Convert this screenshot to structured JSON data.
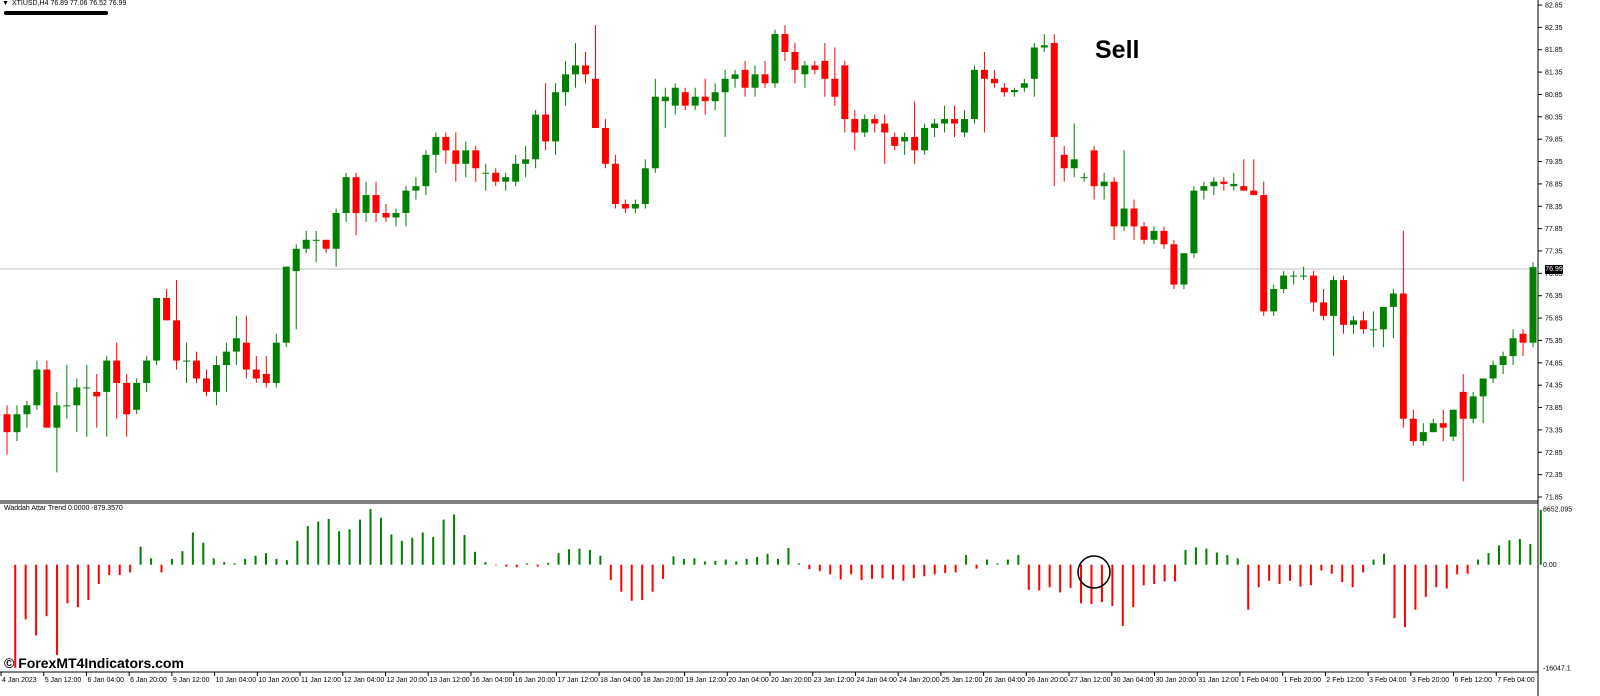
{
  "header": {
    "symbol_line": "XTIUSD,H4  76.89 77.06 76.52 76.99"
  },
  "signal": {
    "label": "Sell"
  },
  "current_price": "76.99",
  "indicator": {
    "title": "Waddah Attar Trend 0.0000 -879.3570",
    "axis_labels": [
      "8652.095",
      "0.00",
      "-16047.1"
    ]
  },
  "watermark": "© ForexMT4Indicators.com",
  "price_axis": [
    "82.85",
    "82.35",
    "81.85",
    "81.35",
    "80.85",
    "80.35",
    "79.85",
    "79.35",
    "78.85",
    "78.35",
    "77.85",
    "77.35",
    "76.85",
    "76.35",
    "75.85",
    "75.35",
    "74.85",
    "74.35",
    "73.85",
    "73.35",
    "72.85",
    "72.35",
    "71.85"
  ],
  "time_axis": [
    "4 Jan 2023",
    "5 Jan 12:00",
    "6 Jan 04:00",
    "6 Jan 20:00",
    "9 Jan 12:00",
    "10 Jan 04:00",
    "10 Jan 20:00",
    "11 Jan 12:00",
    "12 Jan 04:00",
    "12 Jan 20:00",
    "13 Jan 12:00",
    "16 Jan 04:00",
    "16 Jan 20:00",
    "17 Jan 12:00",
    "18 Jan 04:00",
    "18 Jan 20:00",
    "19 Jan 12:00",
    "20 Jan 04:00",
    "20 Jan 20:00",
    "23 Jan 12:00",
    "24 Jan 04:00",
    "24 Jan 20:00",
    "25 Jan 12:00",
    "26 Jan 04:00",
    "26 Jan 20:00",
    "27 Jan 12:00",
    "30 Jan 04:00",
    "30 Jan 20:00",
    "31 Jan 12:00",
    "1 Feb 04:00",
    "1 Feb 20:00",
    "2 Feb 12:00",
    "3 Feb 04:00",
    "3 Feb 20:00",
    "6 Feb 12:00",
    "7 Feb 04:00"
  ],
  "colors": {
    "bull": "#008000",
    "bear": "#ff0000",
    "grid_line": "#c0c0c0",
    "background": "#ffffff"
  },
  "chart_data": {
    "type": "candlestick",
    "ylim": [
      71.85,
      82.85
    ],
    "last_price": 76.99,
    "candles": [
      {
        "o": 73.7,
        "h": 73.9,
        "l": 72.8,
        "c": 73.3
      },
      {
        "o": 73.3,
        "h": 73.9,
        "l": 73.1,
        "c": 73.7
      },
      {
        "o": 73.7,
        "h": 74.0,
        "l": 73.4,
        "c": 73.9
      },
      {
        "o": 73.9,
        "h": 74.9,
        "l": 73.8,
        "c": 74.7
      },
      {
        "o": 74.7,
        "h": 74.9,
        "l": 73.4,
        "c": 73.4
      },
      {
        "o": 73.4,
        "h": 74.2,
        "l": 72.4,
        "c": 73.9
      },
      {
        "o": 73.9,
        "h": 74.8,
        "l": 73.6,
        "c": 73.9
      },
      {
        "o": 73.9,
        "h": 74.5,
        "l": 73.3,
        "c": 74.3
      },
      {
        "o": 74.3,
        "h": 74.8,
        "l": 73.2,
        "c": 74.3
      },
      {
        "o": 74.2,
        "h": 74.6,
        "l": 73.4,
        "c": 74.1
      },
      {
        "o": 74.2,
        "h": 75.0,
        "l": 73.2,
        "c": 74.9
      },
      {
        "o": 74.9,
        "h": 75.3,
        "l": 73.6,
        "c": 74.4
      },
      {
        "o": 74.4,
        "h": 74.6,
        "l": 73.2,
        "c": 73.7
      },
      {
        "o": 73.8,
        "h": 74.5,
        "l": 73.7,
        "c": 74.4
      },
      {
        "o": 74.4,
        "h": 75.0,
        "l": 74.2,
        "c": 74.9
      },
      {
        "o": 74.9,
        "h": 76.3,
        "l": 74.8,
        "c": 76.3
      },
      {
        "o": 76.3,
        "h": 76.5,
        "l": 75.8,
        "c": 75.8
      },
      {
        "o": 75.8,
        "h": 76.7,
        "l": 74.7,
        "c": 74.9
      },
      {
        "o": 74.9,
        "h": 75.3,
        "l": 74.4,
        "c": 74.9
      },
      {
        "o": 74.9,
        "h": 75.1,
        "l": 74.4,
        "c": 74.5
      },
      {
        "o": 74.5,
        "h": 74.7,
        "l": 74.1,
        "c": 74.2
      },
      {
        "o": 74.2,
        "h": 75.0,
        "l": 73.9,
        "c": 74.8
      },
      {
        "o": 74.8,
        "h": 75.3,
        "l": 74.2,
        "c": 75.1
      },
      {
        "o": 75.1,
        "h": 75.9,
        "l": 74.8,
        "c": 75.4
      },
      {
        "o": 75.3,
        "h": 75.9,
        "l": 74.5,
        "c": 74.7
      },
      {
        "o": 74.7,
        "h": 75.0,
        "l": 74.4,
        "c": 74.5
      },
      {
        "o": 74.6,
        "h": 75.0,
        "l": 74.3,
        "c": 74.4
      },
      {
        "o": 74.4,
        "h": 75.5,
        "l": 74.3,
        "c": 75.3
      },
      {
        "o": 75.3,
        "h": 77.0,
        "l": 75.2,
        "c": 77.0
      },
      {
        "o": 76.9,
        "h": 77.5,
        "l": 75.6,
        "c": 77.4
      },
      {
        "o": 77.4,
        "h": 77.8,
        "l": 77.3,
        "c": 77.6
      },
      {
        "o": 77.6,
        "h": 77.8,
        "l": 77.1,
        "c": 77.6
      },
      {
        "o": 77.6,
        "h": 77.6,
        "l": 77.3,
        "c": 77.4
      },
      {
        "o": 77.4,
        "h": 78.3,
        "l": 77.0,
        "c": 78.2
      },
      {
        "o": 78.2,
        "h": 79.1,
        "l": 78.0,
        "c": 79.0
      },
      {
        "o": 79.0,
        "h": 79.1,
        "l": 77.7,
        "c": 78.2
      },
      {
        "o": 78.2,
        "h": 78.9,
        "l": 78.0,
        "c": 78.6
      },
      {
        "o": 78.6,
        "h": 78.9,
        "l": 78.0,
        "c": 78.2
      },
      {
        "o": 78.2,
        "h": 78.4,
        "l": 78.0,
        "c": 78.1
      },
      {
        "o": 78.1,
        "h": 78.3,
        "l": 77.9,
        "c": 78.2
      },
      {
        "o": 78.2,
        "h": 78.8,
        "l": 77.9,
        "c": 78.7
      },
      {
        "o": 78.7,
        "h": 79.0,
        "l": 78.5,
        "c": 78.8
      },
      {
        "o": 78.8,
        "h": 79.6,
        "l": 78.6,
        "c": 79.5
      },
      {
        "o": 79.5,
        "h": 80.0,
        "l": 79.1,
        "c": 79.9
      },
      {
        "o": 79.9,
        "h": 80.0,
        "l": 79.3,
        "c": 79.6
      },
      {
        "o": 79.6,
        "h": 80.0,
        "l": 78.9,
        "c": 79.3
      },
      {
        "o": 79.3,
        "h": 79.8,
        "l": 79.0,
        "c": 79.6
      },
      {
        "o": 79.6,
        "h": 79.7,
        "l": 78.9,
        "c": 79.2
      },
      {
        "o": 79.1,
        "h": 79.3,
        "l": 78.7,
        "c": 79.1
      },
      {
        "o": 79.1,
        "h": 79.2,
        "l": 78.8,
        "c": 78.9
      },
      {
        "o": 78.9,
        "h": 79.1,
        "l": 78.7,
        "c": 79.0
      },
      {
        "o": 78.9,
        "h": 79.5,
        "l": 78.8,
        "c": 79.3
      },
      {
        "o": 79.3,
        "h": 79.7,
        "l": 79.0,
        "c": 79.4
      },
      {
        "o": 79.4,
        "h": 80.5,
        "l": 79.2,
        "c": 80.4
      },
      {
        "o": 80.4,
        "h": 81.1,
        "l": 79.6,
        "c": 79.8
      },
      {
        "o": 79.8,
        "h": 81.1,
        "l": 79.5,
        "c": 80.9
      },
      {
        "o": 80.9,
        "h": 81.6,
        "l": 80.6,
        "c": 81.3
      },
      {
        "o": 81.3,
        "h": 82.0,
        "l": 81.0,
        "c": 81.5
      },
      {
        "o": 81.5,
        "h": 81.8,
        "l": 81.1,
        "c": 81.3
      },
      {
        "o": 81.2,
        "h": 82.4,
        "l": 80.2,
        "c": 80.1
      },
      {
        "o": 80.1,
        "h": 80.3,
        "l": 79.2,
        "c": 79.3
      },
      {
        "o": 79.3,
        "h": 79.5,
        "l": 78.3,
        "c": 78.4
      },
      {
        "o": 78.4,
        "h": 78.5,
        "l": 78.2,
        "c": 78.3
      },
      {
        "o": 78.3,
        "h": 78.5,
        "l": 78.2,
        "c": 78.4
      },
      {
        "o": 78.4,
        "h": 79.4,
        "l": 78.3,
        "c": 79.2
      },
      {
        "o": 79.2,
        "h": 81.2,
        "l": 79.1,
        "c": 80.8
      },
      {
        "o": 80.7,
        "h": 81.0,
        "l": 80.1,
        "c": 80.8
      },
      {
        "o": 80.6,
        "h": 81.1,
        "l": 80.4,
        "c": 81.0
      },
      {
        "o": 80.9,
        "h": 81.0,
        "l": 80.5,
        "c": 80.6
      },
      {
        "o": 80.6,
        "h": 81.0,
        "l": 80.5,
        "c": 80.8
      },
      {
        "o": 80.8,
        "h": 81.2,
        "l": 80.4,
        "c": 80.7
      },
      {
        "o": 80.7,
        "h": 81.1,
        "l": 80.5,
        "c": 80.9
      },
      {
        "o": 80.9,
        "h": 81.4,
        "l": 79.9,
        "c": 81.2
      },
      {
        "o": 81.2,
        "h": 81.4,
        "l": 81.0,
        "c": 81.3
      },
      {
        "o": 81.4,
        "h": 81.6,
        "l": 80.8,
        "c": 81.0
      },
      {
        "o": 81.0,
        "h": 81.5,
        "l": 80.8,
        "c": 81.3
      },
      {
        "o": 81.3,
        "h": 81.6,
        "l": 81.0,
        "c": 81.1
      },
      {
        "o": 81.1,
        "h": 82.3,
        "l": 81.0,
        "c": 82.2
      },
      {
        "o": 82.2,
        "h": 82.4,
        "l": 81.6,
        "c": 81.8
      },
      {
        "o": 81.8,
        "h": 82.0,
        "l": 81.1,
        "c": 81.4
      },
      {
        "o": 81.3,
        "h": 81.6,
        "l": 81.0,
        "c": 81.5
      },
      {
        "o": 81.5,
        "h": 81.6,
        "l": 81.3,
        "c": 81.4
      },
      {
        "o": 81.6,
        "h": 82.0,
        "l": 80.8,
        "c": 81.2
      },
      {
        "o": 81.2,
        "h": 81.9,
        "l": 80.6,
        "c": 80.8
      },
      {
        "o": 81.5,
        "h": 81.6,
        "l": 80.0,
        "c": 80.3
      },
      {
        "o": 80.3,
        "h": 80.5,
        "l": 79.6,
        "c": 80.0
      },
      {
        "o": 80.0,
        "h": 80.4,
        "l": 79.9,
        "c": 80.3
      },
      {
        "o": 80.3,
        "h": 80.4,
        "l": 80.0,
        "c": 80.2
      },
      {
        "o": 80.2,
        "h": 80.4,
        "l": 79.3,
        "c": 80.0
      },
      {
        "o": 79.9,
        "h": 80.0,
        "l": 79.6,
        "c": 79.7
      },
      {
        "o": 79.8,
        "h": 80.0,
        "l": 79.5,
        "c": 79.9
      },
      {
        "o": 79.9,
        "h": 80.7,
        "l": 79.3,
        "c": 79.6
      },
      {
        "o": 79.6,
        "h": 80.2,
        "l": 79.5,
        "c": 80.1
      },
      {
        "o": 80.1,
        "h": 80.3,
        "l": 79.9,
        "c": 80.2
      },
      {
        "o": 80.2,
        "h": 80.6,
        "l": 80.0,
        "c": 80.3
      },
      {
        "o": 80.3,
        "h": 80.6,
        "l": 79.9,
        "c": 80.2
      },
      {
        "o": 80.0,
        "h": 80.5,
        "l": 79.9,
        "c": 80.3
      },
      {
        "o": 80.3,
        "h": 81.5,
        "l": 80.2,
        "c": 81.4
      },
      {
        "o": 81.4,
        "h": 81.8,
        "l": 80.0,
        "c": 81.2
      },
      {
        "o": 81.2,
        "h": 81.4,
        "l": 81.0,
        "c": 81.1
      },
      {
        "o": 81.0,
        "h": 81.1,
        "l": 80.8,
        "c": 80.9
      },
      {
        "o": 80.9,
        "h": 81.0,
        "l": 80.8,
        "c": 80.95
      },
      {
        "o": 81.0,
        "h": 81.2,
        "l": 80.9,
        "c": 81.1
      },
      {
        "o": 81.2,
        "h": 82.0,
        "l": 80.8,
        "c": 81.9
      },
      {
        "o": 81.9,
        "h": 82.2,
        "l": 81.8,
        "c": 81.95
      },
      {
        "o": 82.0,
        "h": 82.2,
        "l": 78.8,
        "c": 79.9
      },
      {
        "o": 79.5,
        "h": 79.7,
        "l": 78.9,
        "c": 79.2
      },
      {
        "o": 79.2,
        "h": 80.2,
        "l": 79.0,
        "c": 79.4
      },
      {
        "o": 79.0,
        "h": 79.1,
        "l": 78.9,
        "c": 79.0
      },
      {
        "o": 79.6,
        "h": 79.7,
        "l": 78.5,
        "c": 78.8
      },
      {
        "o": 78.8,
        "h": 79.1,
        "l": 78.5,
        "c": 78.9
      },
      {
        "o": 78.9,
        "h": 79.0,
        "l": 77.6,
        "c": 77.9
      },
      {
        "o": 77.9,
        "h": 79.6,
        "l": 77.8,
        "c": 78.3
      },
      {
        "o": 78.3,
        "h": 78.5,
        "l": 77.6,
        "c": 77.9
      },
      {
        "o": 77.9,
        "h": 78.0,
        "l": 77.5,
        "c": 77.6
      },
      {
        "o": 77.6,
        "h": 77.9,
        "l": 77.5,
        "c": 77.8
      },
      {
        "o": 77.8,
        "h": 77.9,
        "l": 77.4,
        "c": 77.5
      },
      {
        "o": 77.5,
        "h": 77.6,
        "l": 76.5,
        "c": 76.6
      },
      {
        "o": 76.6,
        "h": 77.3,
        "l": 76.5,
        "c": 77.3
      },
      {
        "o": 77.3,
        "h": 78.8,
        "l": 77.2,
        "c": 78.7
      },
      {
        "o": 78.7,
        "h": 78.9,
        "l": 78.5,
        "c": 78.8
      },
      {
        "o": 78.8,
        "h": 79.0,
        "l": 78.6,
        "c": 78.9
      },
      {
        "o": 78.9,
        "h": 79.0,
        "l": 78.7,
        "c": 78.85
      },
      {
        "o": 78.8,
        "h": 79.1,
        "l": 78.7,
        "c": 78.85
      },
      {
        "o": 78.8,
        "h": 79.4,
        "l": 78.7,
        "c": 78.7
      },
      {
        "o": 78.7,
        "h": 79.4,
        "l": 78.6,
        "c": 78.6
      },
      {
        "o": 78.6,
        "h": 78.9,
        "l": 75.9,
        "c": 76.0
      },
      {
        "o": 76.0,
        "h": 76.6,
        "l": 75.9,
        "c": 76.5
      },
      {
        "o": 76.5,
        "h": 76.9,
        "l": 76.4,
        "c": 76.8
      },
      {
        "o": 76.8,
        "h": 76.9,
        "l": 76.6,
        "c": 76.8
      },
      {
        "o": 76.8,
        "h": 77.0,
        "l": 76.7,
        "c": 76.8
      },
      {
        "o": 76.8,
        "h": 76.9,
        "l": 76.0,
        "c": 76.2
      },
      {
        "o": 76.2,
        "h": 76.5,
        "l": 75.8,
        "c": 75.9
      },
      {
        "o": 75.9,
        "h": 76.8,
        "l": 75.0,
        "c": 76.7
      },
      {
        "o": 76.7,
        "h": 76.8,
        "l": 75.5,
        "c": 75.7
      },
      {
        "o": 75.7,
        "h": 75.9,
        "l": 75.5,
        "c": 75.8
      },
      {
        "o": 75.8,
        "h": 76.0,
        "l": 75.5,
        "c": 75.6
      },
      {
        "o": 75.6,
        "h": 76.0,
        "l": 75.2,
        "c": 75.6
      },
      {
        "o": 75.6,
        "h": 76.0,
        "l": 75.2,
        "c": 76.1
      },
      {
        "o": 76.1,
        "h": 76.5,
        "l": 75.4,
        "c": 76.4
      },
      {
        "o": 76.4,
        "h": 77.8,
        "l": 73.4,
        "c": 73.6
      },
      {
        "o": 73.6,
        "h": 73.8,
        "l": 73.0,
        "c": 73.1
      },
      {
        "o": 73.1,
        "h": 73.5,
        "l": 73.0,
        "c": 73.3
      },
      {
        "o": 73.3,
        "h": 73.6,
        "l": 73.3,
        "c": 73.5
      },
      {
        "o": 73.5,
        "h": 73.8,
        "l": 73.1,
        "c": 73.4
      },
      {
        "o": 73.2,
        "h": 73.8,
        "l": 73.1,
        "c": 73.8
      },
      {
        "o": 74.2,
        "h": 74.6,
        "l": 72.2,
        "c": 73.6
      },
      {
        "o": 73.6,
        "h": 74.2,
        "l": 73.5,
        "c": 74.1
      },
      {
        "o": 74.1,
        "h": 74.5,
        "l": 73.5,
        "c": 74.5
      },
      {
        "o": 74.5,
        "h": 74.9,
        "l": 74.4,
        "c": 74.8
      },
      {
        "o": 74.8,
        "h": 75.1,
        "l": 74.6,
        "c": 75.0
      },
      {
        "o": 75.0,
        "h": 75.6,
        "l": 74.8,
        "c": 75.4
      },
      {
        "o": 75.5,
        "h": 75.6,
        "l": 75.0,
        "c": 75.3
      },
      {
        "o": 75.3,
        "h": 77.1,
        "l": 75.2,
        "c": 76.99
      }
    ],
    "indicator_values": [
      -16000,
      -8500,
      -11000,
      -8000,
      -14000,
      -6000,
      -6600,
      -5500,
      -3000,
      -1600,
      -1600,
      -1200,
      2800,
      1000,
      -1200,
      900,
      2100,
      5000,
      3400,
      1000,
      400,
      200,
      900,
      1400,
      1800,
      900,
      700,
      3700,
      6000,
      6700,
      7100,
      5200,
      5500,
      7000,
      8650,
      7300,
      4700,
      3700,
      4200,
      5000,
      4300,
      7000,
      7800,
      4600,
      2000,
      400,
      -100,
      -300,
      -400,
      200,
      -300,
      300,
      1800,
      2400,
      2500,
      2300,
      1400,
      -2400,
      -4200,
      -5600,
      -5500,
      -4200,
      -2200,
      1300,
      900,
      1000,
      500,
      600,
      800,
      500,
      900,
      1200,
      1700,
      900,
      2600,
      200,
      -700,
      -1000,
      -1500,
      -2300,
      -1500,
      -2400,
      -2200,
      -2100,
      -2300,
      -2500,
      -2100,
      -1800,
      -1500,
      -1300,
      -1200,
      1500,
      -600,
      800,
      200,
      800,
      1500,
      -3900,
      -4000,
      -3500,
      -4300,
      -3600,
      -6000,
      -6100,
      -5800,
      -6400,
      -9500,
      -6600,
      -3200,
      -3000,
      -2600,
      -2600,
      2300,
      2700,
      2500,
      1900,
      1500,
      1000,
      -7000,
      -3500,
      -2500,
      -3000,
      -2500,
      -3400,
      -3200,
      -900,
      -1400,
      -2700,
      -3500,
      -1200,
      800,
      1700,
      -8300,
      -9700,
      -7000,
      -5000,
      -3500,
      -3700,
      -1500,
      -1400,
      800,
      1800,
      3000,
      3800,
      4000,
      3200,
      8500
    ],
    "indicator_ylim": [
      -16047.1,
      8652.095
    ]
  }
}
